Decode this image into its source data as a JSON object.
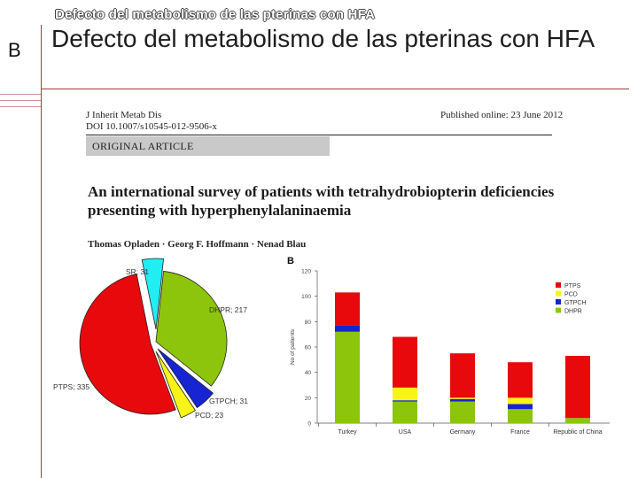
{
  "slide": {
    "header_title": "Defecto del metabolismo de las pterinas con HFA",
    "side_letter": "B",
    "title": "Defecto del metabolismo de las pterinas con HFA"
  },
  "paper": {
    "journal_line1": "J Inherit Metab Dis",
    "journal_line2": "DOI 10.1007/s10545-012-9506-x",
    "published": "Published online: 23 June 2012",
    "section_label": "ORIGINAL ARTICLE",
    "article_title": "An international survey of patients with tetrahydrobiopterin deficiencies presenting with hyperphenylalaninaemia",
    "authors": "Thomas Opladen · Georg F. Hoffmann · Nenad Blau"
  },
  "colors": {
    "red": "#e8090c",
    "green": "#8dc50c",
    "yellow": "#f8f418",
    "blue": "#1624d2",
    "cyan": "#21eef2",
    "accent": "#a83a3a"
  },
  "chart_data": [
    {
      "type": "pie",
      "title": "",
      "slices": [
        {
          "label": "DHPR; 217",
          "name": "DHPR",
          "value": 217,
          "color": "#8dc50c"
        },
        {
          "label": "GTPCH; 31",
          "name": "GTPCH",
          "value": 31,
          "color": "#1624d2"
        },
        {
          "label": "PCD; 23",
          "name": "PCD",
          "value": 23,
          "color": "#f8f418"
        },
        {
          "label": "PTPS; 335",
          "name": "PTPS",
          "value": 335,
          "color": "#e8090c"
        },
        {
          "label": "SR; 31",
          "name": "SR",
          "value": 31,
          "color": "#21eef2"
        }
      ]
    },
    {
      "type": "bar",
      "stacked": true,
      "panel_label": "B",
      "title": "",
      "xlabel": "",
      "ylabel": "No of patients",
      "ylim": [
        0,
        120
      ],
      "yticks": [
        0,
        20,
        40,
        60,
        80,
        100,
        120
      ],
      "categories": [
        "Turkey",
        "USA",
        "Germany",
        "France",
        "Republic of China"
      ],
      "series": [
        {
          "name": "DHPR",
          "color": "#8dc50c",
          "values": [
            72,
            17,
            17,
            11,
            4
          ]
        },
        {
          "name": "GTPCH",
          "color": "#1624d2",
          "values": [
            5,
            1,
            2,
            4,
            0
          ]
        },
        {
          "name": "PCD",
          "color": "#f8f418",
          "values": [
            0,
            10,
            1,
            5,
            0
          ]
        },
        {
          "name": "PTPS",
          "color": "#e8090c",
          "values": [
            26,
            40,
            35,
            28,
            49
          ]
        }
      ],
      "legend": [
        "PTPS",
        "PCD",
        "GTPCH",
        "DHPR"
      ],
      "legend_position": "top-right"
    }
  ]
}
